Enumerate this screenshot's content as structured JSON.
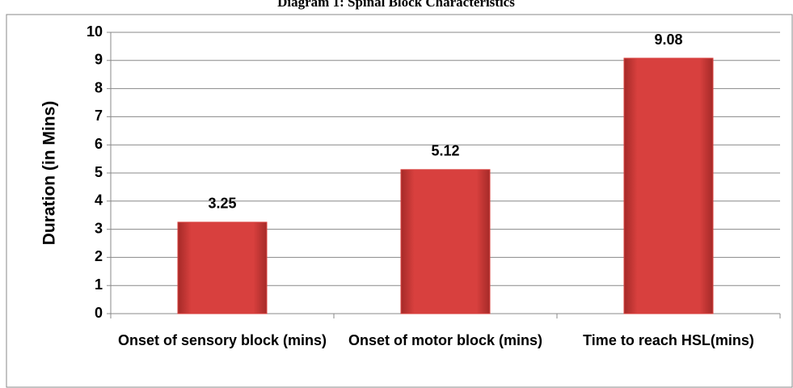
{
  "chart_data": {
    "type": "bar",
    "title": "Diagram 1: Spinal Block Characteristics",
    "y_label": "Duration (in Mins)",
    "categories": [
      "Onset of sensory block (mins)",
      "Onset of motor block (mins)",
      "Time to reach HSL(mins)"
    ],
    "values": [
      3.25,
      5.12,
      9.08
    ],
    "color": "#d8403e",
    "ylim": [
      0,
      10
    ],
    "yticks": [
      0,
      1,
      2,
      3,
      4,
      5,
      6,
      7,
      8,
      9,
      10
    ],
    "grid": true
  }
}
